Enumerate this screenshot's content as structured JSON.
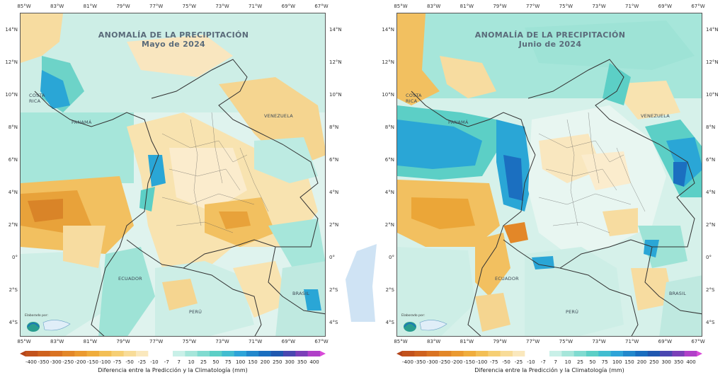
{
  "colors": {
    "sea_neutral": "#d9f2ec",
    "dry_light": "#f7dca0",
    "dry_mid": "#f2c060",
    "dry_strong": "#e39a2a",
    "dry_extreme": "#c8611a",
    "wet_light": "#9ee3d6",
    "wet_mid": "#5ccfc6",
    "wet_strong": "#2aa6d6",
    "wet_extreme": "#1b6fc0",
    "border_line": "#333333",
    "divider": "#cfe3f4"
  },
  "longitude_labels": [
    "85°W",
    "83°W",
    "81°W",
    "79°W",
    "77°W",
    "75°W",
    "73°W",
    "71°W",
    "69°W",
    "67°W"
  ],
  "latitude_labels": [
    "14°N",
    "12°N",
    "10°N",
    "8°N",
    "6°N",
    "4°N",
    "2°N",
    "0°",
    "2°S",
    "4°S"
  ],
  "colorbar": {
    "ticks": [
      "-400",
      "-350",
      "-300",
      "-250",
      "-200",
      "-150",
      "-100",
      "-75",
      "-50",
      "-25",
      "-10",
      "-7",
      "7",
      "10",
      "25",
      "50",
      "75",
      "100",
      "150",
      "200",
      "250",
      "300",
      "350",
      "400"
    ],
    "colors": [
      "#b3441a",
      "#c2521c",
      "#cf621e",
      "#da7322",
      "#e38728",
      "#eb9a30",
      "#f0ad3c",
      "#f3bf55",
      "#f6cf74",
      "#f8dc98",
      "#fae8bd",
      "#ffffff",
      "#ffffff",
      "#c9f0e8",
      "#a6e6da",
      "#80dbd0",
      "#5ccfc6",
      "#42bdd0",
      "#2ea4d8",
      "#2288cc",
      "#1a6ebf",
      "#2058b0",
      "#4a47b0",
      "#7b3fb8",
      "#b040c8",
      "#d84ad8"
    ],
    "label": "Diferencia entre la Predicción y la Climatología (mm)"
  },
  "maps": [
    {
      "title_line1": "ANOMALÍA DE LA PRECIPITACIÓN",
      "title_line2": "Mayo de 2024",
      "countries": {
        "costa_rica": "COSTA\nRICA",
        "panama": "PANAMÁ",
        "venezuela": "VENEZUELA",
        "ecuador": "ECUADOR",
        "peru": "PERÚ",
        "brasil": "BRASIL"
      },
      "logo_caption": "Elaborado por:"
    },
    {
      "title_line1": "ANOMALÍA DE LA PRECIPITACIÓN",
      "title_line2": "Junio de 2024",
      "countries": {
        "costa_rica": "COSTA\nRICA",
        "panama": "PANAMÁ",
        "venezuela": "VENEZUELA",
        "ecuador": "ECUADOR",
        "peru": "PERÚ",
        "brasil": "BRASIL"
      },
      "logo_caption": "Elaborado por:"
    }
  ]
}
